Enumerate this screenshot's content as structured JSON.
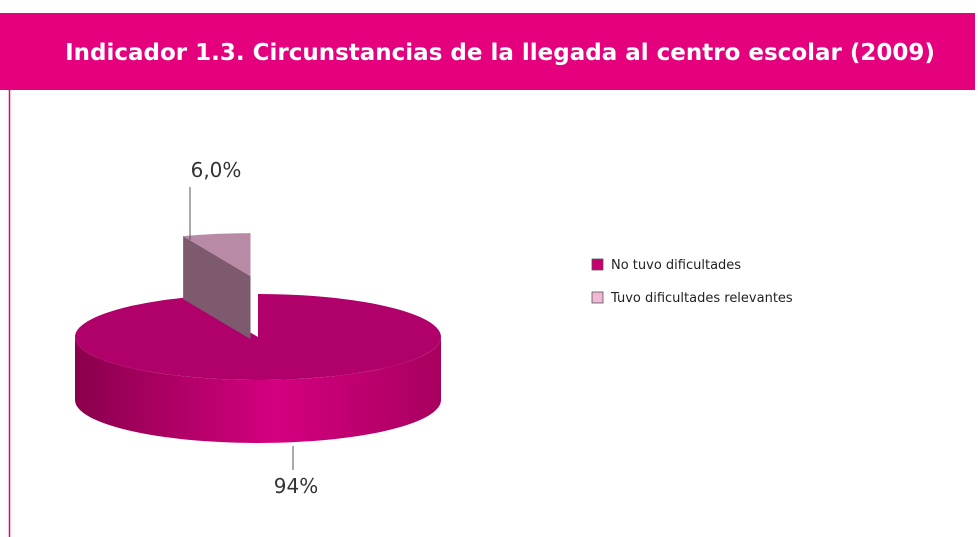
{
  "chart_data": {
    "type": "pie3d",
    "title": "Indicador 1.3.  Circunstancias de la llegada al centro escolar (2009)",
    "categories": [
      "No tuvo dificultades",
      "Tuvo dificultades relevantes"
    ],
    "values": [
      94,
      6
    ],
    "value_labels": [
      "94%",
      "6,0%"
    ],
    "colors": [
      "#c8006f",
      "#f2b8d3"
    ],
    "legend": "right"
  }
}
